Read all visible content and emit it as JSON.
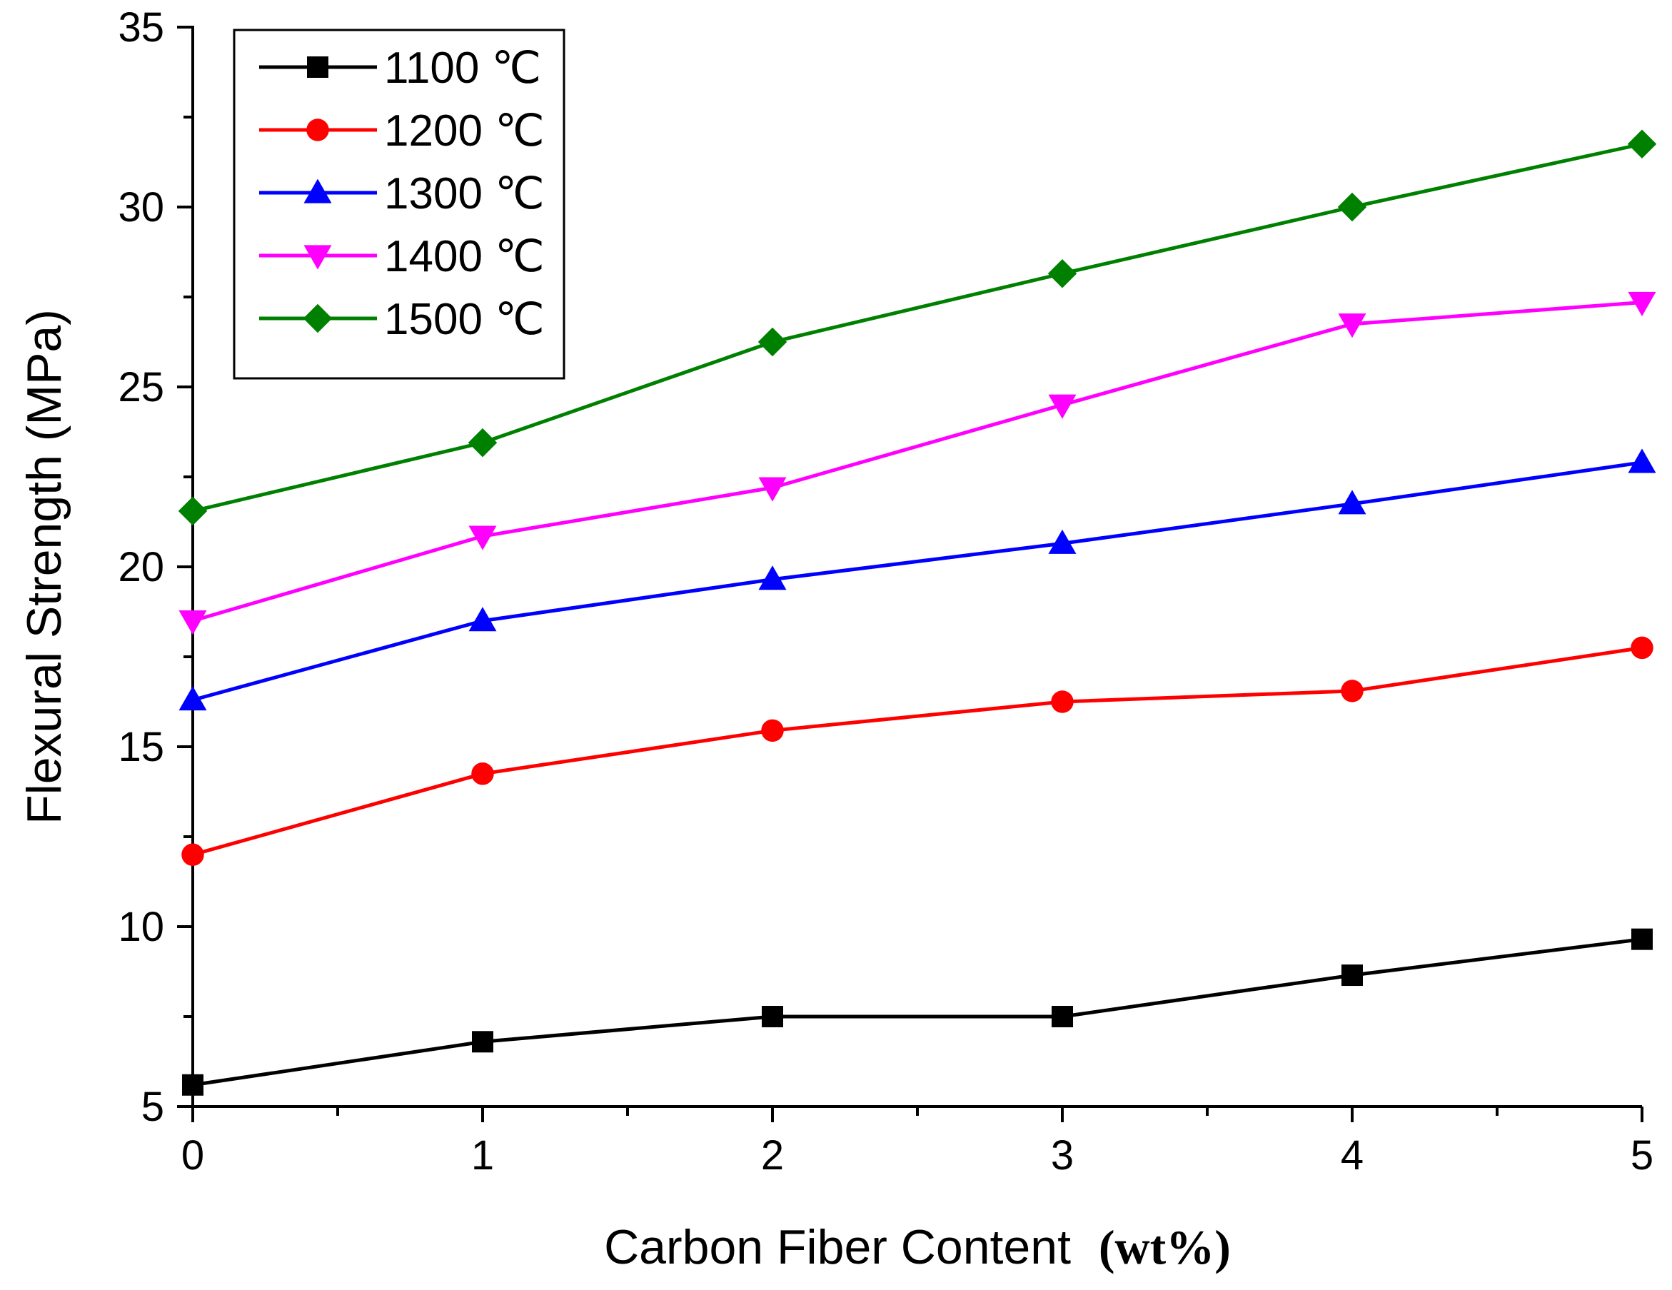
{
  "chart_data": {
    "type": "line",
    "title": "",
    "xlabel": "Carbon Fiber Content",
    "xlabel_unit": "(wt%)",
    "ylabel": "Flexural Strength (MPa)",
    "xlim": [
      0,
      5
    ],
    "ylim": [
      5,
      35
    ],
    "x_ticks": [
      0,
      1,
      2,
      3,
      4,
      5
    ],
    "y_ticks": [
      5,
      10,
      15,
      20,
      25,
      30,
      35
    ],
    "grid": false,
    "legend_position": "top-left",
    "x": [
      0,
      1,
      2,
      3,
      4,
      5
    ],
    "series": [
      {
        "name": "1100 ℃",
        "color": "#000000",
        "marker": "square",
        "values": [
          5.6,
          6.8,
          7.5,
          7.5,
          8.65,
          9.65
        ]
      },
      {
        "name": "1200 ℃",
        "color": "#ff0000",
        "marker": "circle",
        "values": [
          12.0,
          14.25,
          15.45,
          16.25,
          16.55,
          17.75
        ]
      },
      {
        "name": "1300 ℃",
        "color": "#0000ff",
        "marker": "triangle-up",
        "values": [
          16.3,
          18.5,
          19.65,
          20.65,
          21.75,
          22.9
        ]
      },
      {
        "name": "1400 ℃",
        "color": "#ff00ff",
        "marker": "triangle-down",
        "values": [
          18.5,
          20.85,
          22.2,
          24.5,
          26.75,
          27.35
        ]
      },
      {
        "name": "1500 ℃",
        "color": "#008000",
        "marker": "diamond",
        "values": [
          21.55,
          23.45,
          26.25,
          28.15,
          30.0,
          31.75
        ]
      }
    ]
  }
}
